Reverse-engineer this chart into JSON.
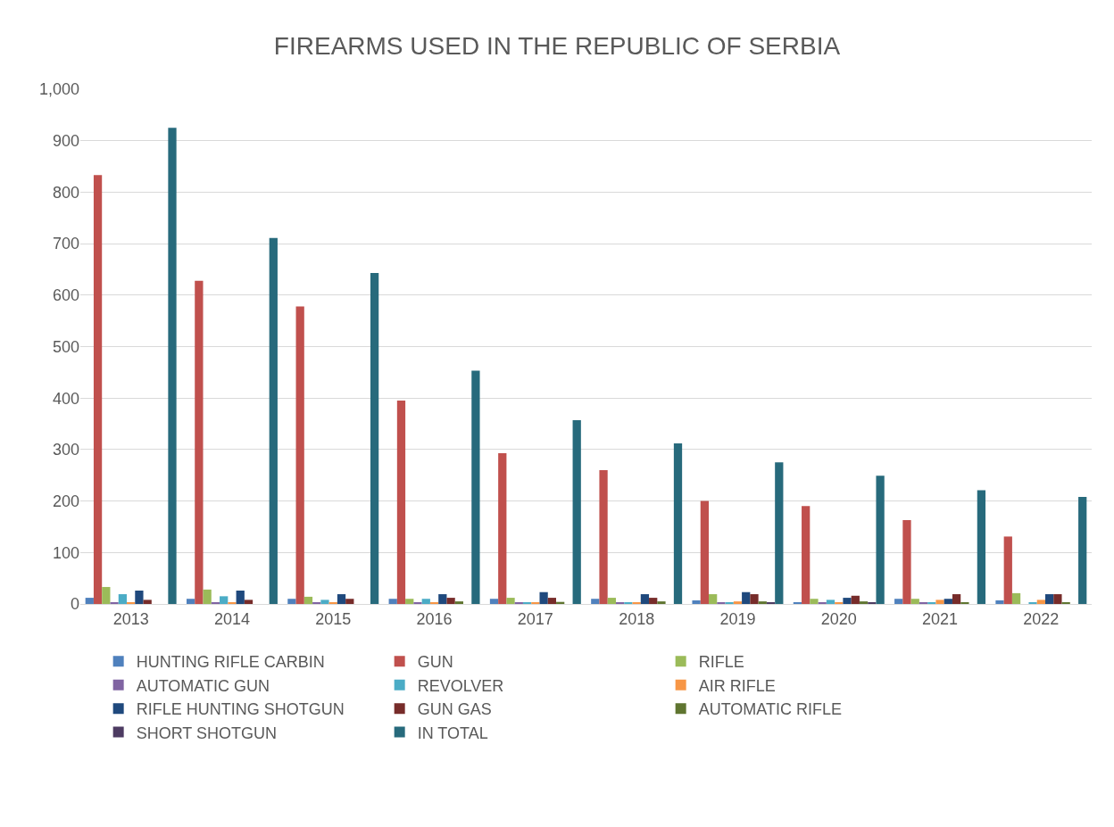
{
  "chart_data": {
    "type": "bar",
    "title": "FIREARMS USED IN THE REPUBLIC OF SERBIA",
    "categories": [
      "2013",
      "2014",
      "2015",
      "2016",
      "2017",
      "2018",
      "2019",
      "2020",
      "2021",
      "2022"
    ],
    "series": [
      {
        "name": "HUNTING RIFLE CARBIN",
        "color": "#4f81bd",
        "values": [
          12,
          10,
          10,
          10,
          10,
          10,
          7,
          3,
          10,
          7
        ]
      },
      {
        "name": "GUN",
        "color": "#c0504d",
        "values": [
          833,
          628,
          578,
          395,
          293,
          260,
          200,
          190,
          163,
          131
        ]
      },
      {
        "name": "RIFLE",
        "color": "#9bbb59",
        "values": [
          33,
          28,
          14,
          10,
          12,
          12,
          19,
          10,
          10,
          21
        ]
      },
      {
        "name": "AUTOMATIC GUN",
        "color": "#8064a2",
        "values": [
          2,
          2,
          3,
          2,
          3,
          3,
          3,
          3,
          3,
          0
        ]
      },
      {
        "name": "REVOLVER",
        "color": "#4bacc6",
        "values": [
          19,
          15,
          8,
          10,
          3,
          3,
          3,
          8,
          3,
          3
        ]
      },
      {
        "name": "AIR RIFLE",
        "color": "#f79646",
        "values": [
          2,
          2,
          3,
          2,
          3,
          3,
          5,
          3,
          8,
          8
        ]
      },
      {
        "name": "RIFLE HUNTING SHOTGUN",
        "color": "#1f497d",
        "values": [
          26,
          26,
          19,
          19,
          23,
          19,
          23,
          12,
          10,
          19
        ]
      },
      {
        "name": "GUN GAS",
        "color": "#772c2a",
        "values": [
          8,
          8,
          10,
          12,
          12,
          12,
          19,
          16,
          19,
          19
        ]
      },
      {
        "name": "AUTOMATIC RIFLE",
        "color": "#5f7530",
        "values": [
          0,
          0,
          0,
          5,
          4,
          5,
          5,
          5,
          3,
          3
        ]
      },
      {
        "name": "SHORT SHOTGUN",
        "color": "#4d3b62",
        "values": [
          0,
          0,
          0,
          0,
          0,
          0,
          3,
          3,
          0,
          0
        ]
      },
      {
        "name": "IN TOTAL",
        "color": "#276a7c",
        "values": [
          925,
          711,
          643,
          453,
          357,
          312,
          275,
          249,
          221,
          208
        ]
      }
    ],
    "ylim": [
      0,
      1000
    ],
    "yticks": [
      0,
      100,
      200,
      300,
      400,
      500,
      600,
      700,
      800,
      900,
      {
        "value": 1000,
        "label": "1,000"
      }
    ],
    "grid": "y",
    "legend": "bottom"
  }
}
